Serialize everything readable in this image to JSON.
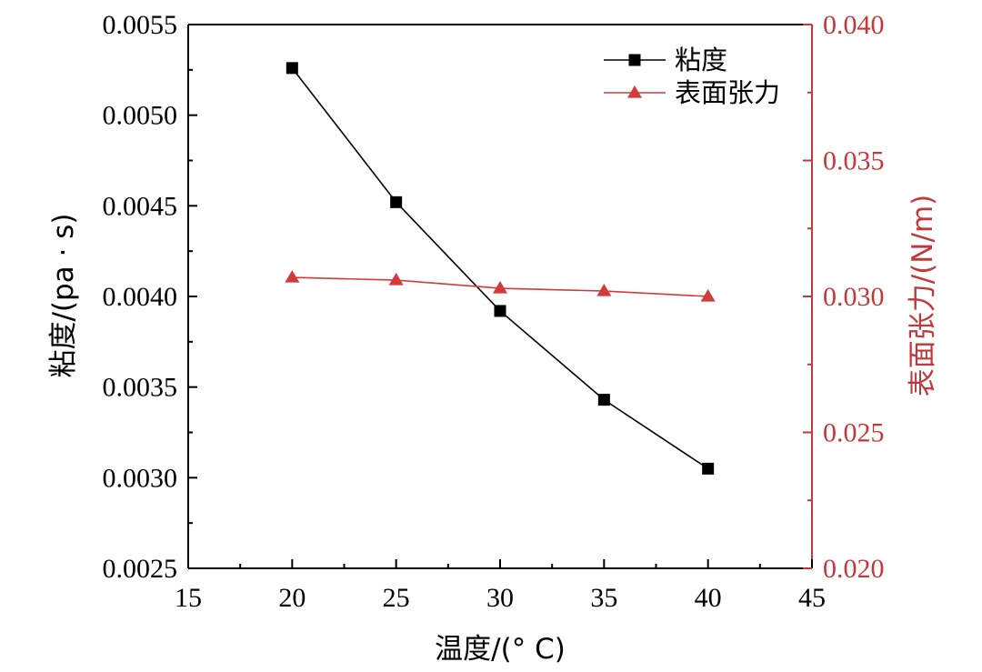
{
  "chart_data": {
    "type": "line",
    "x": [
      20,
      25,
      30,
      35,
      40
    ],
    "xlabel": "温度/(° C)",
    "xlim": [
      15,
      45
    ],
    "xticks": [
      "15",
      "20",
      "25",
      "30",
      "35",
      "40",
      "45"
    ],
    "ylabel_left": "粘度/(pa · s)",
    "ylim_left": [
      0.0025,
      0.0055
    ],
    "yticks_left": [
      "0.0025",
      "0.0030",
      "0.0035",
      "0.0040",
      "0.0045",
      "0.0050",
      "0.0055"
    ],
    "ylabel_right": "表面张力/(N/m)",
    "ylim_right": [
      0.02,
      0.04
    ],
    "yticks_right": [
      "0.020",
      "0.025",
      "0.030",
      "0.035",
      "0.040"
    ],
    "grid": false,
    "legend_position": "top-right",
    "series": [
      {
        "name": "粘度",
        "axis": "left",
        "marker": "square",
        "color": "#000000",
        "values": [
          0.00526,
          0.00452,
          0.00392,
          0.00343,
          0.00305
        ]
      },
      {
        "name": "表面张力",
        "axis": "right",
        "marker": "triangle",
        "color": "#d23b3b",
        "values": [
          0.0307,
          0.0306,
          0.0303,
          0.0302,
          0.03
        ]
      }
    ],
    "right_axis_color": "#c0393b"
  }
}
